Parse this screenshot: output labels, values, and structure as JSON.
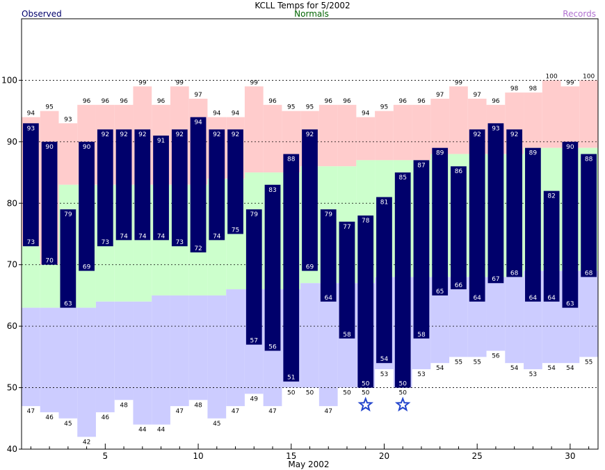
{
  "chart_data": {
    "type": "bar",
    "title": "KCLL Temps for 5/2002",
    "legend": [
      {
        "label": "Observed",
        "color": "#00006b",
        "position": "top-left"
      },
      {
        "label": "Normals",
        "color": "#006400",
        "position": "top-center"
      },
      {
        "label": "Records",
        "color": "#b070d0",
        "position": "top-right"
      }
    ],
    "xlabel": "May 2002",
    "ylabel": "",
    "ylim": [
      40,
      110
    ],
    "xlim": [
      0.5,
      31.5
    ],
    "y_ticks": [
      40,
      50,
      60,
      70,
      80,
      90,
      100
    ],
    "x_ticks": [
      5,
      10,
      15,
      20,
      25,
      30
    ],
    "grid": "dashed horizontal every 10",
    "days": [
      1,
      2,
      3,
      4,
      5,
      6,
      7,
      8,
      9,
      10,
      11,
      12,
      13,
      14,
      15,
      16,
      17,
      18,
      19,
      20,
      21,
      22,
      23,
      24,
      25,
      26,
      27,
      28,
      29,
      30,
      31
    ],
    "observed_high": [
      93,
      90,
      79,
      90,
      92,
      92,
      92,
      91,
      92,
      94,
      92,
      92,
      79,
      83,
      88,
      92,
      79,
      77,
      78,
      81,
      85,
      87,
      89,
      86,
      92,
      93,
      92,
      89,
      82,
      90,
      88
    ],
    "observed_low": [
      73,
      70,
      63,
      69,
      73,
      74,
      74,
      74,
      73,
      72,
      74,
      75,
      57,
      56,
      51,
      69,
      64,
      58,
      50,
      54,
      50,
      58,
      65,
      66,
      64,
      67,
      68,
      64,
      64,
      63,
      68
    ],
    "normal_high": [
      73,
      70,
      83,
      83,
      83,
      83,
      83,
      83,
      83,
      83,
      84,
      84,
      85,
      85,
      85,
      86,
      86,
      86,
      87,
      87,
      87,
      87,
      88,
      88,
      88,
      88,
      88,
      89,
      89,
      89,
      89
    ],
    "normal_low": [
      63,
      63,
      63,
      63,
      64,
      64,
      64,
      65,
      65,
      65,
      65,
      66,
      66,
      66,
      66,
      67,
      67,
      67,
      67,
      68,
      68,
      68,
      68,
      68,
      68,
      68,
      68,
      69,
      69,
      69,
      69
    ],
    "record_high": [
      94,
      95,
      93,
      96,
      96,
      96,
      99,
      96,
      99,
      97,
      94,
      94,
      99,
      96,
      95,
      95,
      96,
      96,
      94,
      95,
      96,
      96,
      97,
      99,
      97,
      96,
      98,
      98,
      100,
      99,
      100
    ],
    "record_low": [
      47,
      46,
      45,
      42,
      46,
      48,
      44,
      44,
      47,
      48,
      45,
      47,
      49,
      47,
      50,
      50,
      47,
      50,
      50,
      53,
      50,
      53,
      54,
      55,
      55,
      56,
      54,
      53,
      54,
      54,
      55
    ],
    "record_low_markers": [
      19,
      21
    ],
    "colors": {
      "observed": "#00006b",
      "normal": "#ccffcc",
      "record_high": "#ffcccc",
      "record_low": "#ccccff",
      "star": "#2244cc",
      "grid": "#000000"
    }
  }
}
